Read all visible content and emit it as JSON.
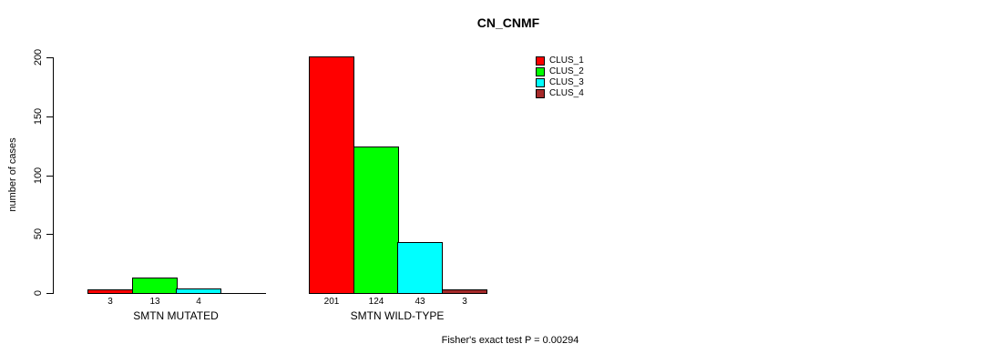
{
  "chart_data": {
    "type": "bar",
    "title": "CN_CNMF",
    "ylabel": "number of cases",
    "xlabel": "",
    "ylim": [
      0,
      200
    ],
    "yticks": [
      "0",
      "50",
      "100",
      "150",
      "200"
    ],
    "grid": false,
    "legend_position": "top-right",
    "categories": [
      "SMTN MUTATED",
      "SMTN WILD-TYPE"
    ],
    "series": [
      {
        "name": "CLUS_1",
        "color": "#ff0000",
        "values": [
          3,
          201
        ]
      },
      {
        "name": "CLUS_2",
        "color": "#00ff00",
        "values": [
          13,
          124
        ]
      },
      {
        "name": "CLUS_3",
        "color": "#00ffff",
        "values": [
          4,
          43
        ]
      },
      {
        "name": "CLUS_4",
        "color": "#a52a2a",
        "values": [
          0,
          3
        ]
      }
    ],
    "bar_labels": [
      [
        "3",
        "13",
        "4",
        ""
      ],
      [
        "201",
        "124",
        "43",
        "3"
      ]
    ],
    "annotation": "Fisher's exact test P = 0.00294"
  }
}
